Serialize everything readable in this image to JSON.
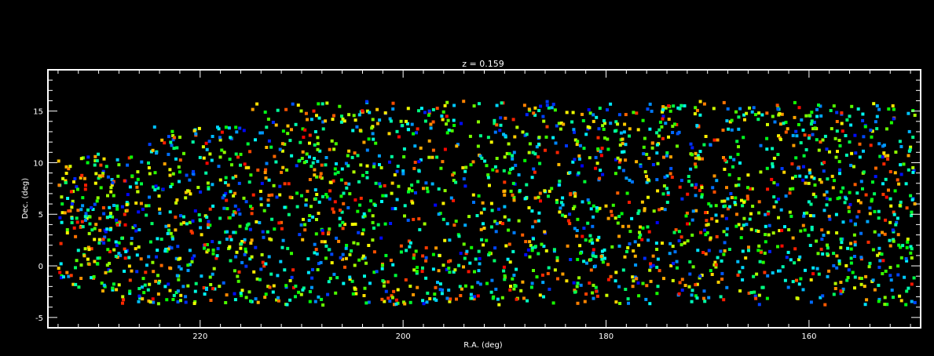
{
  "chart_data": {
    "type": "scatter",
    "title": "z = 0.159",
    "xlabel": "R.A. (deg)",
    "ylabel": "Dec. (deg)",
    "xlim": [
      235,
      149
    ],
    "ylim": [
      -6,
      19
    ],
    "x_ticks": [
      220,
      200,
      180,
      160
    ],
    "y_ticks": [
      -5,
      0,
      5,
      10,
      15
    ],
    "x_tick_labels": [
      "220",
      "200",
      "180",
      "160"
    ],
    "y_tick_labels": [
      "-5",
      "0",
      "5",
      "10",
      "15"
    ],
    "grid": false,
    "legend": "none",
    "background": "#000000",
    "axis_color": "#ffffff",
    "color_scale": [
      "#0000ff",
      "#00ffff",
      "#00ff00",
      "#ffff00",
      "#ff0000"
    ],
    "point_count_estimate": 2500,
    "points": [
      [
        232,
        1.5,
        0.3
      ],
      [
        231,
        0.2,
        0.6
      ],
      [
        230.5,
        -1.2,
        0.9
      ],
      [
        229,
        2.5,
        0.5
      ],
      [
        228,
        1.2,
        0.2
      ],
      [
        232.5,
        -1.8,
        0.8
      ],
      [
        226,
        -2.2,
        0.4
      ],
      [
        224,
        -1.5,
        0.7
      ],
      [
        223,
        1.8,
        0.1
      ],
      [
        221,
        4.2,
        0.6
      ],
      [
        219,
        5.5,
        0.95
      ],
      [
        217,
        7.2,
        0.3
      ],
      [
        215,
        8.8,
        0.55
      ],
      [
        213,
        11.5,
        0.45
      ],
      [
        211,
        13.2,
        0.85
      ],
      [
        209,
        14.2,
        0.2
      ],
      [
        207,
        12.1,
        0.65
      ],
      [
        205,
        10.5,
        0.35
      ],
      [
        203,
        13.5,
        0.75
      ],
      [
        201,
        15.2,
        0.15
      ],
      [
        199,
        12.8,
        0.5
      ],
      [
        197,
        11.2,
        0.9
      ],
      [
        195,
        14.1,
        0.25
      ],
      [
        193,
        15.5,
        0.6
      ],
      [
        191,
        13.8,
        0.4
      ],
      [
        189,
        12.5,
        0.8
      ],
      [
        187,
        14.6,
        0.3
      ],
      [
        185,
        15.1,
        0.55
      ],
      [
        183,
        12.2,
        0.7
      ],
      [
        181,
        10.5,
        0.1
      ],
      [
        179,
        13.1,
        0.45
      ],
      [
        177,
        14.8,
        0.95
      ],
      [
        175,
        12.9,
        0.35
      ],
      [
        173,
        11.6,
        0.6
      ],
      [
        171,
        13.5,
        0.2
      ],
      [
        169,
        12.2,
        0.85
      ],
      [
        167,
        10.8,
        0.5
      ],
      [
        165,
        14.2,
        0.4
      ],
      [
        163,
        12.6,
        0.75
      ],
      [
        161,
        9.5,
        0.3
      ],
      [
        159,
        11.2,
        0.65
      ],
      [
        157,
        10.1,
        0.55
      ],
      [
        155,
        11.8,
        0.9
      ],
      [
        153,
        10.6,
        0.45
      ],
      [
        151,
        9.8,
        0.25
      ],
      [
        150,
        11.5,
        0.7
      ],
      [
        230,
        8.5,
        0.4
      ],
      [
        228,
        9.8,
        0.6
      ],
      [
        226,
        3.5,
        0.2
      ],
      [
        224,
        5.5,
        0.8
      ],
      [
        222,
        9.1,
        0.5
      ],
      [
        220,
        10.5,
        0.3
      ],
      [
        218,
        12.2,
        0.7
      ],
      [
        216,
        10.8,
        0.55
      ],
      [
        214,
        6.5,
        0.15
      ],
      [
        212,
        4.2,
        0.9
      ],
      [
        210,
        6.8,
        0.45
      ],
      [
        208,
        8.5,
        0.65
      ],
      [
        206,
        5.2,
        0.35
      ],
      [
        204,
        3.1,
        0.75
      ],
      [
        202,
        6.8,
        0.5
      ],
      [
        200,
        9.2,
        0.2
      ],
      [
        198,
        7.5,
        0.85
      ],
      [
        196,
        4.5,
        0.4
      ],
      [
        194,
        2.1,
        0.6
      ],
      [
        192,
        5.5,
        0.3
      ],
      [
        190,
        8.1,
        0.95
      ],
      [
        188,
        10.2,
        0.5
      ],
      [
        186,
        7.2,
        0.25
      ],
      [
        184,
        4.8,
        0.7
      ],
      [
        182,
        2.5,
        0.45
      ],
      [
        180,
        5.8,
        0.8
      ],
      [
        178,
        8.5,
        0.15
      ],
      [
        176,
        10.8,
        0.6
      ],
      [
        174,
        7.5,
        0.35
      ],
      [
        172,
        5.1,
        0.9
      ],
      [
        170,
        3.2,
        0.55
      ],
      [
        168,
        6.5,
        0.2
      ],
      [
        166,
        8.8,
        0.75
      ],
      [
        164,
        5.2,
        0.4
      ],
      [
        162,
        3.5,
        0.65
      ],
      [
        160,
        6.2,
        0.3
      ],
      [
        158,
        4.8,
        0.85
      ],
      [
        156,
        7.1,
        0.5
      ],
      [
        154,
        5.6,
        0.1
      ],
      [
        152,
        4.2,
        0.7
      ],
      [
        150,
        6.8,
        0.45
      ],
      [
        229,
        -0.5,
        0.5
      ],
      [
        227,
        0.8,
        0.3
      ],
      [
        225,
        -1.8,
        0.7
      ],
      [
        223,
        -0.2,
        0.9
      ],
      [
        221,
        1.5,
        0.2
      ],
      [
        219,
        -1.1,
        0.6
      ],
      [
        217,
        0.5,
        0.4
      ],
      [
        215,
        2.2,
        0.8
      ],
      [
        213,
        -0.8,
        0.35
      ],
      [
        211,
        1.2,
        0.55
      ],
      [
        209,
        -2.1,
        0.15
      ],
      [
        207,
        0.3,
        0.75
      ],
      [
        205,
        -1.5,
        0.45
      ],
      [
        203,
        2.5,
        0.65
      ],
      [
        201,
        0.1,
        0.25
      ],
      [
        199,
        -2.8,
        0.85
      ],
      [
        197,
        1.1,
        0.5
      ],
      [
        195,
        -0.6,
        0.3
      ],
      [
        193,
        -3.2,
        0.9
      ],
      [
        191,
        0.5,
        0.4
      ],
      [
        189,
        -1.9,
        0.6
      ],
      [
        187,
        1.8,
        0.2
      ],
      [
        185,
        -0.4,
        0.7
      ],
      [
        183,
        -2.5,
        0.55
      ],
      [
        181,
        0.9,
        0.35
      ],
      [
        179,
        -3.5,
        0.8
      ],
      [
        177,
        -1.2,
        0.1
      ],
      [
        175,
        1.6,
        0.65
      ],
      [
        173,
        -0.2,
        0.45
      ],
      [
        171,
        -1.8,
        0.75
      ],
      [
        169,
        0.8,
        0.3
      ],
      [
        167,
        -0.9,
        0.95
      ],
      [
        165,
        1.5,
        0.5
      ],
      [
        163,
        -0.5,
        0.25
      ],
      [
        161,
        0.6,
        0.7
      ],
      [
        159,
        -0.8,
        0.4
      ],
      [
        157,
        0.2,
        0.6
      ],
      [
        155,
        -1.2,
        0.85
      ],
      [
        153,
        0.5,
        0.15
      ],
      [
        151,
        1.8,
        0.5
      ]
    ]
  }
}
